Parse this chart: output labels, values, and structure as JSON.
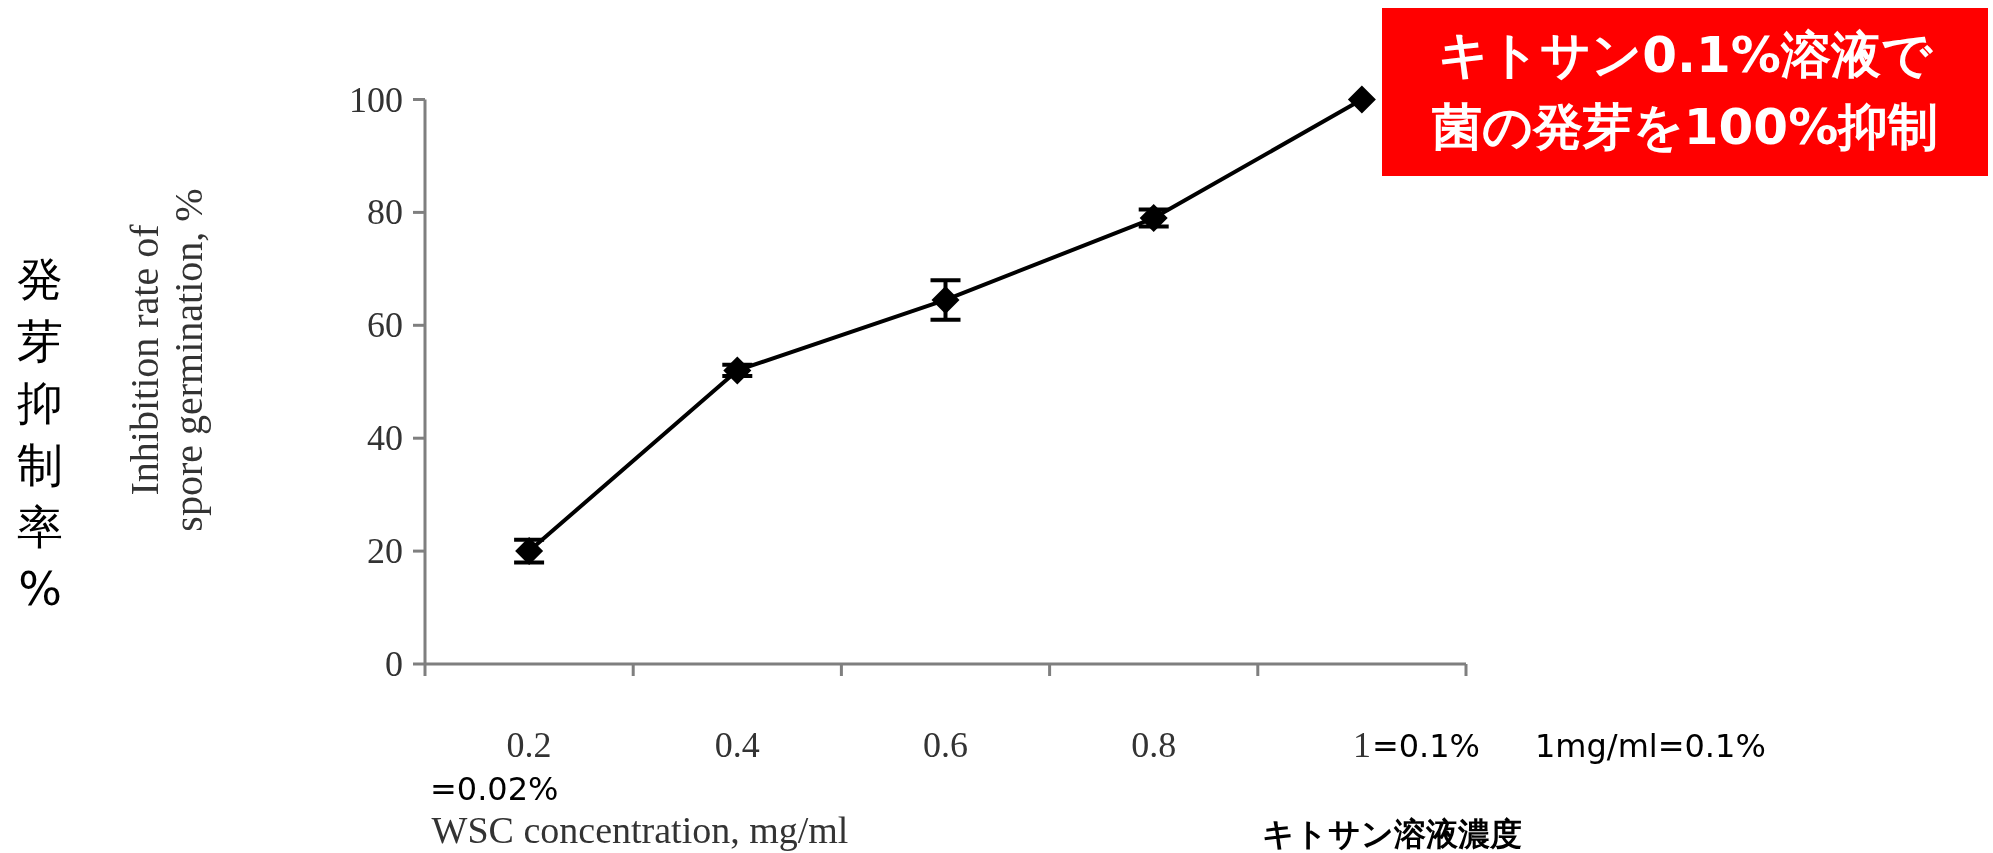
{
  "chart_data": {
    "type": "line",
    "ylabel": "Inhibition rate of\nspore germination, %",
    "xlabel": "WSC concentration, mg/ml",
    "categories": [
      "0.2",
      "0.4",
      "0.6",
      "0.8",
      "1"
    ],
    "series": [
      {
        "color": "#000000",
        "values": [
          20,
          52,
          64.5,
          79,
          100
        ],
        "errors": [
          2,
          1,
          3.5,
          1.5,
          null
        ]
      }
    ],
    "ylim": [
      0,
      100
    ],
    "yticks": [
      0,
      20,
      40,
      60,
      80,
      100
    ],
    "marker": "diamond",
    "line_style": "solid",
    "annotations": [
      "キトサン0.1%溶液で",
      "菌の発芽を100%抑制",
      "発芽抑制率%",
      "=0.02%",
      "=0.1%",
      "1mg/ml=0.1%",
      "キトサン溶液濃度"
    ]
  }
}
